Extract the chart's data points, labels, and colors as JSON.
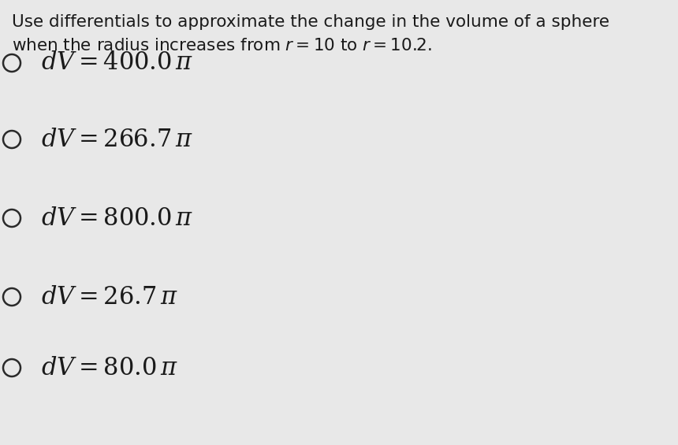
{
  "background_color": "#e8e8e8",
  "text_color": "#1a1a1a",
  "circle_color": "#2a2a2a",
  "question_line1": "Use differentials to approximate the change in the volume of a sphere",
  "question_line2": "when the radius increases from $r = 10$ to $r = 10.2$.",
  "option_math": [
    "$dV = 400.0\\,\\pi$",
    "$dV = 266.7\\,\\pi$",
    "$dV = 800.0\\,\\pi$",
    "$dV = 26.7\\,\\pi$",
    "$dV = 80.0\\,\\pi$"
  ],
  "question_fontsize": 15.5,
  "option_fontsize": 22,
  "fig_width": 8.6,
  "fig_height": 5.65,
  "dpi": 100
}
